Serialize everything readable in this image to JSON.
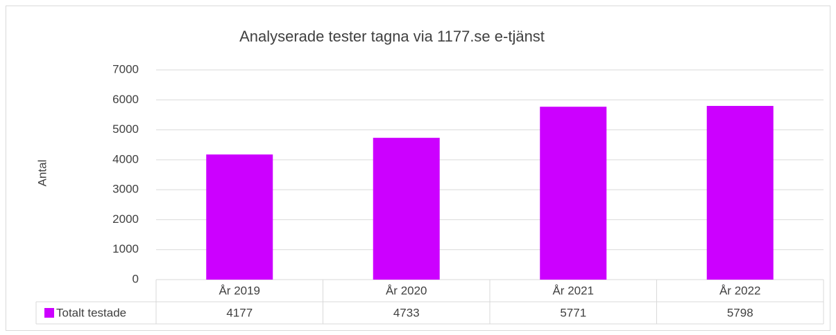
{
  "chart_data": {
    "type": "bar",
    "title": "Analyserade tester tagna via 1177.se e-tjänst",
    "y_label": "Antal",
    "categories": [
      "År 2019",
      "År 2020",
      "År 2021",
      "År 2022"
    ],
    "series": [
      {
        "name": "Totalt testade",
        "color": "#cc00ff",
        "values": [
          4177,
          4733,
          5771,
          5798
        ]
      }
    ],
    "ylim": [
      0,
      7000
    ],
    "yticks": [
      0,
      1000,
      2000,
      3000,
      4000,
      5000,
      6000,
      7000
    ],
    "grid": true,
    "data_table": true
  }
}
